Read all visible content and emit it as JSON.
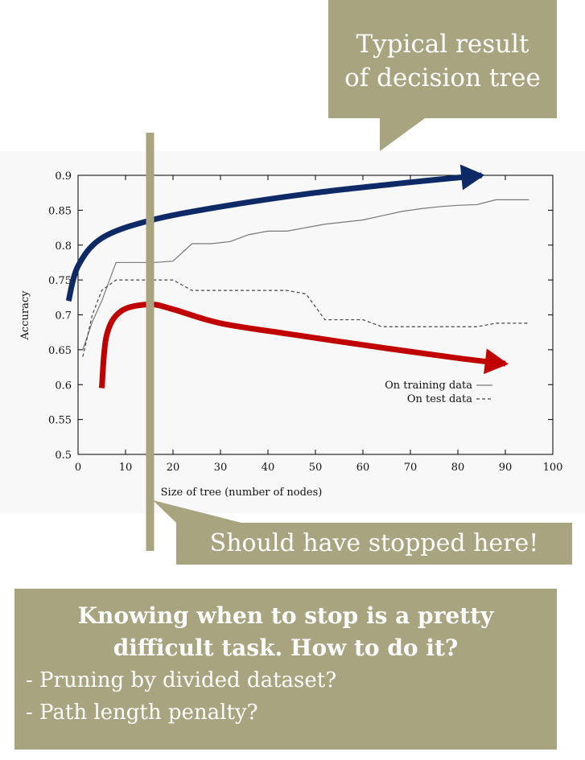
{
  "callout_top": {
    "line1": "Typical result",
    "line2": "of decision tree"
  },
  "callout_bottom": {
    "text": "Should have stopped here!"
  },
  "text_box": {
    "heading_line1": "Knowing when to stop is a pretty",
    "heading_line2": "difficult task. How to do it?",
    "bullets": [
      "- Pruning by divided dataset?",
      "- Path length penalty?"
    ]
  },
  "colors": {
    "box": "#a8a47f",
    "blue_arrow": "#0d2a66",
    "red_arrow": "#c00000",
    "stop_line": "#a8a47f"
  },
  "chart_data": {
    "type": "line",
    "xlabel": "Size of tree (number of nodes)",
    "ylabel": "Accuracy",
    "xlim": [
      0,
      100
    ],
    "ylim": [
      0.5,
      0.9
    ],
    "xticks": [
      0,
      10,
      20,
      30,
      40,
      50,
      60,
      70,
      80,
      90,
      100
    ],
    "yticks": [
      0.5,
      0.55,
      0.6,
      0.65,
      0.7,
      0.75,
      0.8,
      0.85,
      0.9
    ],
    "legend_position": "right",
    "grid": false,
    "series": [
      {
        "name": "On training data",
        "style": "solid",
        "x": [
          1,
          3,
          5,
          8,
          12,
          16,
          20,
          24,
          28,
          32,
          36,
          40,
          44,
          48,
          52,
          56,
          60,
          64,
          68,
          72,
          76,
          80,
          84,
          88,
          92,
          95
        ],
        "y": [
          0.65,
          0.69,
          0.72,
          0.775,
          0.775,
          0.775,
          0.777,
          0.802,
          0.802,
          0.805,
          0.815,
          0.82,
          0.82,
          0.825,
          0.83,
          0.833,
          0.836,
          0.842,
          0.848,
          0.852,
          0.855,
          0.857,
          0.858,
          0.865,
          0.865,
          0.865
        ]
      },
      {
        "name": "On test data",
        "style": "dashed",
        "x": [
          1,
          3,
          5,
          8,
          12,
          16,
          20,
          24,
          28,
          32,
          36,
          40,
          44,
          48,
          52,
          56,
          60,
          64,
          68,
          72,
          76,
          80,
          84,
          88,
          92,
          95
        ],
        "y": [
          0.64,
          0.7,
          0.735,
          0.75,
          0.75,
          0.75,
          0.75,
          0.735,
          0.735,
          0.735,
          0.735,
          0.735,
          0.735,
          0.73,
          0.693,
          0.693,
          0.693,
          0.683,
          0.683,
          0.683,
          0.683,
          0.683,
          0.683,
          0.688,
          0.688,
          0.688
        ]
      }
    ],
    "annotations": {
      "stop_line_x": 15,
      "blue_arrow": [
        [
          -2,
          0.72
        ],
        [
          0,
          0.77
        ],
        [
          5,
          0.81
        ],
        [
          15,
          0.835
        ],
        [
          30,
          0.855
        ],
        [
          50,
          0.875
        ],
        [
          70,
          0.89
        ],
        [
          85,
          0.9
        ]
      ],
      "red_arrow": [
        [
          5,
          0.595
        ],
        [
          6,
          0.67
        ],
        [
          9,
          0.705
        ],
        [
          15,
          0.715
        ],
        [
          20,
          0.708
        ],
        [
          30,
          0.688
        ],
        [
          45,
          0.672
        ],
        [
          65,
          0.652
        ],
        [
          80,
          0.638
        ],
        [
          90,
          0.63
        ]
      ]
    }
  }
}
